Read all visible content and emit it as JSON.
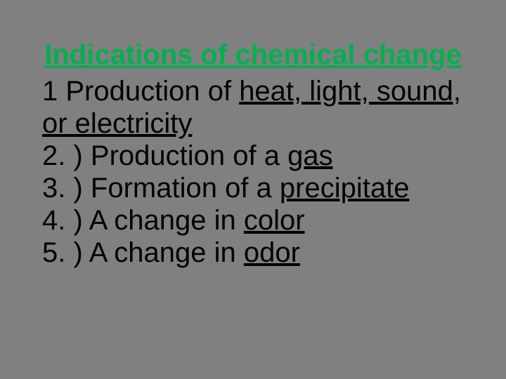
{
  "slide": {
    "background_color": "#808080",
    "title": {
      "text": "Indications of chemical change",
      "color": "#00b050",
      "fontsize": 40,
      "fontweight": "bold",
      "underline": true,
      "align": "center"
    },
    "body": {
      "color": "#000000",
      "fontsize": 40,
      "items": [
        {
          "prefix": "1   ",
          "plain": "Production of ",
          "underlined": "heat, light, sound, or electricity"
        },
        {
          "prefix": "2. ) ",
          "plain": "Production of a ",
          "underlined": "gas"
        },
        {
          "prefix": "3. ) ",
          "plain": "Formation of a ",
          "underlined": "precipitate"
        },
        {
          "prefix": "4. ) ",
          "plain": "A change in ",
          "underlined": "color"
        },
        {
          "prefix": "5. ) ",
          "plain": "A change in ",
          "underlined": "odor"
        }
      ]
    }
  }
}
